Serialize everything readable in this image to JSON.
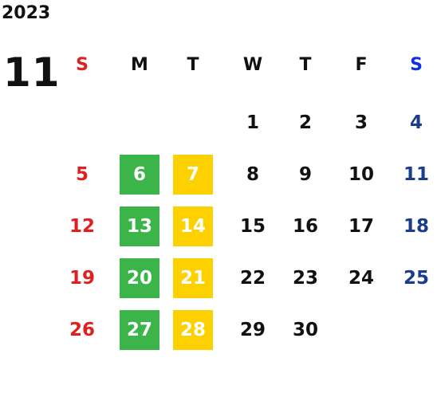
{
  "year": "2023",
  "month": "11",
  "weekdays": [
    "S",
    "M",
    "T",
    "W",
    "T",
    "F",
    "S"
  ],
  "weeks": [
    [
      null,
      null,
      null,
      1,
      2,
      3,
      4
    ],
    [
      5,
      6,
      7,
      8,
      9,
      10,
      11
    ],
    [
      12,
      13,
      14,
      15,
      16,
      17,
      18
    ],
    [
      19,
      20,
      21,
      22,
      23,
      24,
      25
    ],
    [
      26,
      27,
      28,
      29,
      30,
      null,
      null
    ]
  ]
}
